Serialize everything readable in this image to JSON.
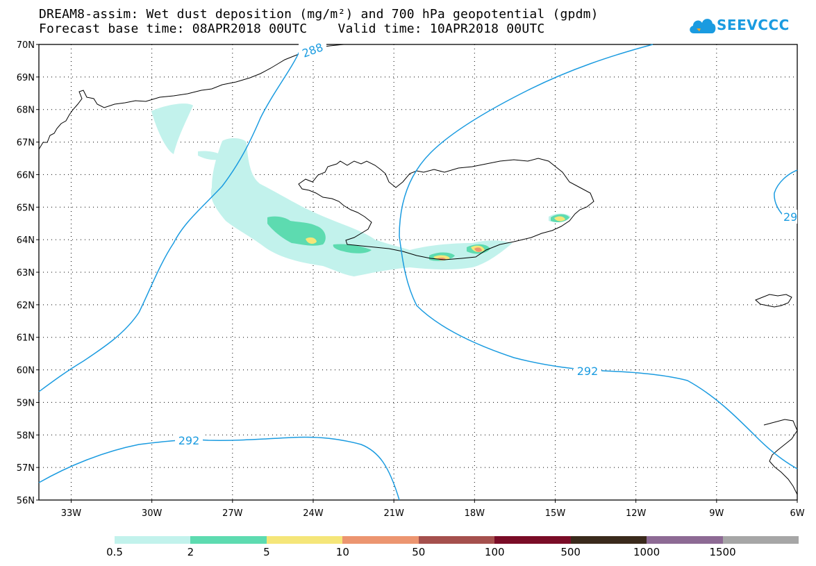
{
  "title": {
    "line1": "DREAM8-assim: Wet dust deposition (mg/m²) and 700 hPa geopotential (gpdm)",
    "line2": "Forecast base time: 08APR2018 00UTC    Valid time: 10APR2018 00UTC"
  },
  "logo": {
    "text": "SEEVCCC",
    "icon": "cloud-icon",
    "color": "#1a9be0"
  },
  "axes": {
    "lat_labels": [
      "70N",
      "69N",
      "68N",
      "67N",
      "66N",
      "65N",
      "64N",
      "63N",
      "62N",
      "61N",
      "60N",
      "59N",
      "58N",
      "57N",
      "56N"
    ],
    "lon_labels": [
      "33W",
      "30W",
      "27W",
      "24W",
      "21W",
      "18W",
      "15W",
      "12W",
      "9W",
      "6W"
    ],
    "lat_range": [
      56,
      70
    ],
    "lon_range": [
      -34.2,
      -6
    ],
    "grid": "dotted"
  },
  "contours": {
    "color": "#1a9be0",
    "labels": [
      "288",
      "292",
      "292",
      "29"
    ]
  },
  "legend": {
    "labels": [
      "0.5",
      "2",
      "5",
      "10",
      "50",
      "100",
      "500",
      "1000",
      "1500"
    ],
    "colors": [
      "#c2f2ec",
      "#5ddbb0",
      "#f5e679",
      "#ec9570",
      "#a5504d",
      "#7a0c27",
      "#3a2a1c",
      "#8d6a94",
      "#a6a6a6"
    ]
  },
  "deposition_colors": {
    "low": "#c2f2ec",
    "mid": "#5ddbb0",
    "high": "#f5e679",
    "peak": "#ec9570"
  }
}
